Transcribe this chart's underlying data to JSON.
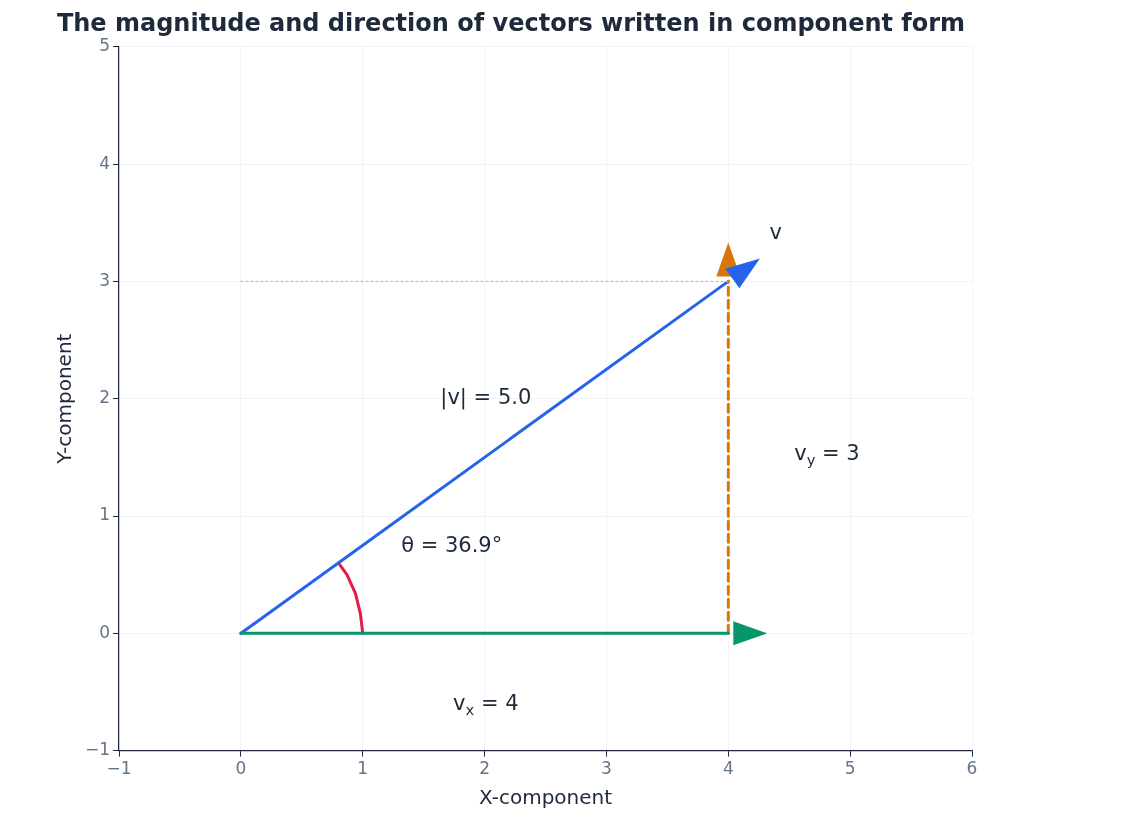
{
  "chart_data": {
    "type": "line",
    "title": "The magnitude and direction of vectors written in component form",
    "xlabel": "X-component",
    "ylabel": "Y-component",
    "xlim": [
      -1,
      6
    ],
    "ylim": [
      -1,
      5
    ],
    "xticks": [
      {
        "value": -1,
        "label": "−1"
      },
      0,
      1,
      2,
      3,
      4,
      5,
      6
    ],
    "yticks": [
      {
        "value": -1,
        "label": "−1"
      },
      0,
      1,
      2,
      3,
      4,
      5
    ],
    "grid": true,
    "series": [
      {
        "color": "#b0b0b0",
        "x": [
          0,
          4
        ],
        "values": [
          3,
          3
        ],
        "line_style": "dotted"
      },
      {
        "color": "#059669",
        "x": [
          0,
          4
        ],
        "values": [
          0,
          0
        ]
      },
      {
        "color": "#d97706",
        "x": [
          4,
          4
        ],
        "values": [
          0,
          3
        ],
        "line_style": "dashed"
      },
      {
        "color": "#2563eb",
        "x": [
          0,
          4
        ],
        "values": [
          0,
          3
        ]
      },
      {
        "color": "#e11d48",
        "x": [
          1,
          0.98,
          0.94,
          0.87,
          0.8
        ],
        "values": [
          0,
          0.17,
          0.34,
          0.5,
          0.6
        ]
      }
    ],
    "annotations": [
      "v",
      "|v| = 5.0",
      "θ = 36.9°",
      "v$_{x}$ = 4",
      "v$_{y}$ = 3"
    ]
  }
}
